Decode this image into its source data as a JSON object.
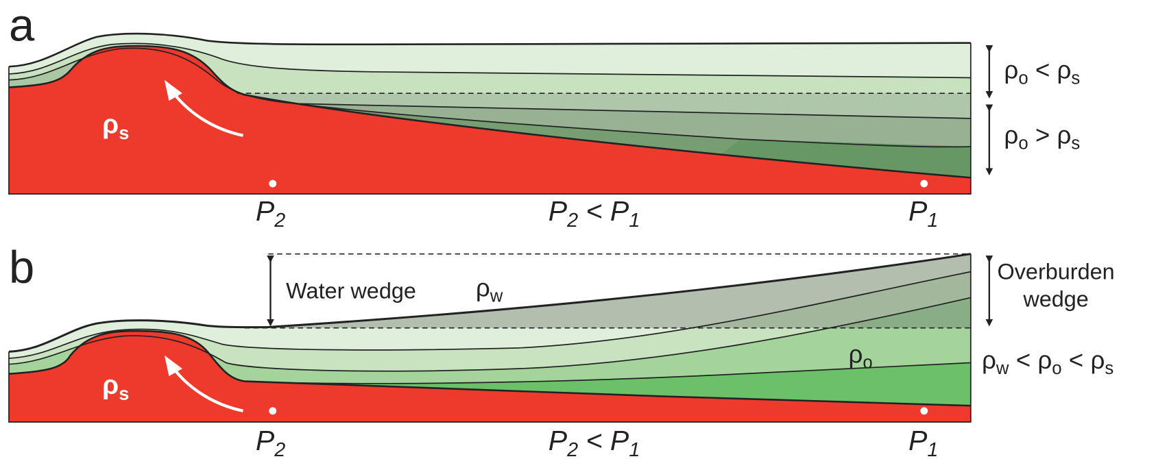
{
  "panels": [
    {
      "letter": "a",
      "salt": [
        {
          "text": "ρ"
        },
        {
          "sub": "s"
        }
      ],
      "p_left": [
        {
          "text": "P"
        },
        {
          "sub": "2"
        }
      ],
      "relation": [
        {
          "text": "P"
        },
        {
          "sub": "2"
        },
        {
          "text": " < P"
        },
        {
          "sub": "1"
        }
      ],
      "p_right": [
        {
          "text": "P"
        },
        {
          "sub": "1"
        }
      ],
      "upper_label": [
        {
          "text": "ρ"
        },
        {
          "sub": "o"
        },
        {
          "text": " < ρ"
        },
        {
          "sub": "s"
        }
      ],
      "lower_label": [
        {
          "text": "ρ"
        },
        {
          "sub": "o"
        },
        {
          "text": " > ρ"
        },
        {
          "sub": "s"
        }
      ]
    },
    {
      "letter": "b",
      "salt": [
        {
          "text": "ρ"
        },
        {
          "sub": "s"
        }
      ],
      "p_left": [
        {
          "text": "P"
        },
        {
          "sub": "2"
        }
      ],
      "relation": [
        {
          "text": "P"
        },
        {
          "sub": "2"
        },
        {
          "text": " < P"
        },
        {
          "sub": "1"
        }
      ],
      "p_right": [
        {
          "text": "P"
        },
        {
          "sub": "1"
        }
      ],
      "water_wedge": "Water wedge",
      "water_density": [
        {
          "text": "ρ"
        },
        {
          "sub": "w"
        }
      ],
      "overburden_wedge": [
        "Overburden",
        "wedge"
      ],
      "overburden_density": [
        {
          "text": "ρ"
        },
        {
          "sub": "o"
        }
      ],
      "density_relation": [
        {
          "text": "ρ"
        },
        {
          "sub": "w"
        },
        {
          "text": " < ρ"
        },
        {
          "sub": "o"
        },
        {
          "text": " < ρ"
        },
        {
          "sub": "s"
        }
      ]
    }
  ]
}
